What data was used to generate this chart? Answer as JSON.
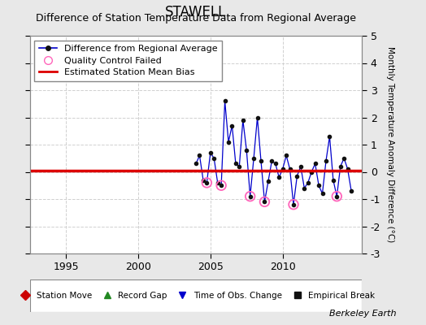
{
  "title": "STAWELL",
  "subtitle": "Difference of Station Temperature Data from Regional Average",
  "ylabel_right": "Monthly Temperature Anomaly Difference (°C)",
  "background_color": "#e8e8e8",
  "plot_bg_color": "#ffffff",
  "grid_color": "#d0d0d0",
  "xlim": [
    1992.5,
    2015.5
  ],
  "ylim": [
    -3,
    5
  ],
  "yticks": [
    -3,
    -2,
    -1,
    0,
    1,
    2,
    3,
    4,
    5
  ],
  "xticks": [
    1995,
    2000,
    2005,
    2010
  ],
  "bias_value": 0.05,
  "berkeley_earth_text": "Berkeley Earth",
  "data_x": [
    2004.0,
    2004.25,
    2004.5,
    2004.75,
    2005.0,
    2005.25,
    2005.5,
    2005.75,
    2006.0,
    2006.25,
    2006.5,
    2006.75,
    2007.0,
    2007.25,
    2007.5,
    2007.75,
    2008.0,
    2008.25,
    2008.5,
    2008.75,
    2009.0,
    2009.25,
    2009.5,
    2009.75,
    2010.0,
    2010.25,
    2010.5,
    2010.75,
    2011.0,
    2011.25,
    2011.5,
    2011.75,
    2012.0,
    2012.25,
    2012.5,
    2012.75,
    2013.0,
    2013.25,
    2013.5,
    2013.75,
    2014.0,
    2014.25,
    2014.5,
    2014.75
  ],
  "data_y": [
    0.3,
    0.6,
    -0.3,
    -0.4,
    0.7,
    0.5,
    -0.4,
    -0.5,
    2.6,
    1.1,
    1.7,
    0.3,
    0.2,
    1.9,
    0.8,
    -0.9,
    0.5,
    2.0,
    0.4,
    -1.1,
    -0.35,
    0.4,
    0.3,
    -0.2,
    0.1,
    0.6,
    0.1,
    -1.2,
    -0.15,
    0.2,
    -0.6,
    -0.4,
    0.0,
    0.3,
    -0.5,
    -0.8,
    0.4,
    1.3,
    -0.3,
    -0.9,
    0.2,
    0.5,
    0.1,
    -0.7
  ],
  "qc_failed_x": [
    2004.75,
    2005.75,
    2007.75,
    2008.75,
    2010.75,
    2013.75
  ],
  "qc_failed_y": [
    -0.4,
    -0.5,
    -0.9,
    -1.1,
    -1.2,
    -0.9
  ],
  "line_color": "#0000cc",
  "marker_color": "#111111",
  "bias_color": "#dd0000",
  "qc_color": "#ff66bb",
  "legend_fontsize": 8,
  "title_fontsize": 12,
  "subtitle_fontsize": 9
}
